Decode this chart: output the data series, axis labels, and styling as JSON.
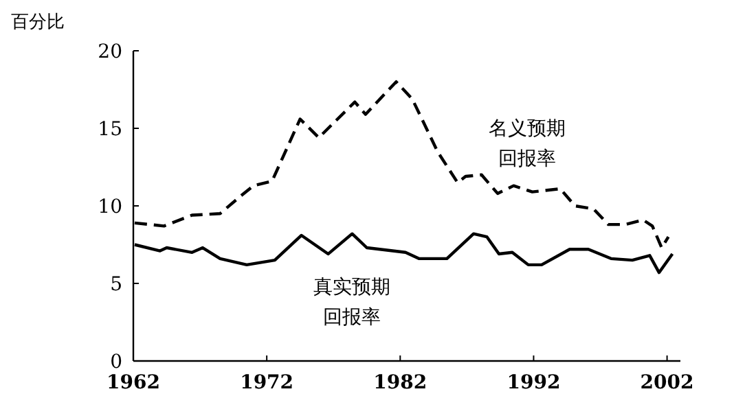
{
  "chart_data": {
    "type": "line",
    "ylabel": "百分比",
    "xlim": [
      1962,
      2003
    ],
    "xticks": [
      1962,
      1972,
      1982,
      1992,
      2002
    ],
    "ylim": [
      0,
      20
    ],
    "yticks": [
      0,
      5,
      10,
      15,
      20
    ],
    "marker": "none",
    "series": [
      {
        "name": "名义预期回报率",
        "color": "#000000",
        "line_style": "dashed",
        "x": [
          1962.1,
          1964.3,
          1966.4,
          1968.5,
          1970.0,
          1971.0,
          1972.4,
          1974.5,
          1975.9,
          1978.6,
          1979.4,
          1981.7,
          1982.9,
          1984.8,
          1986.3,
          1986.9,
          1988.1,
          1989.3,
          1990.5,
          1991.9,
          1994.0,
          1995.1,
          1996.5,
          1997.6,
          1998.9,
          2000.2,
          2000.9,
          2001.6,
          2002.1
        ],
        "values": [
          8.9,
          8.7,
          9.4,
          9.5,
          10.6,
          11.3,
          11.6,
          15.6,
          14.4,
          16.7,
          15.9,
          18.0,
          16.9,
          13.5,
          11.5,
          11.9,
          12.0,
          10.8,
          11.3,
          10.9,
          11.1,
          10.0,
          9.8,
          8.8,
          8.8,
          9.1,
          8.7,
          7.3,
          8.0
        ]
      },
      {
        "name": "真实预期回报率",
        "color": "#000000",
        "line_style": "solid",
        "x": [
          1962.1,
          1964.0,
          1964.5,
          1966.4,
          1967.2,
          1968.5,
          1970.5,
          1972.6,
          1974.6,
          1976.6,
          1978.4,
          1979.5,
          1982.4,
          1983.4,
          1985.5,
          1987.5,
          1988.5,
          1989.4,
          1990.4,
          1991.6,
          1992.6,
          1994.7,
          1996.1,
          1997.8,
          1999.4,
          2000.7,
          2001.4,
          2002.4
        ],
        "values": [
          7.5,
          7.1,
          7.3,
          7.0,
          7.3,
          6.6,
          6.2,
          6.5,
          8.1,
          6.9,
          8.2,
          7.3,
          7.0,
          6.6,
          6.6,
          8.2,
          8.0,
          6.9,
          7.0,
          6.2,
          6.2,
          7.2,
          7.2,
          6.6,
          6.5,
          6.8,
          5.7,
          6.9
        ]
      }
    ]
  }
}
